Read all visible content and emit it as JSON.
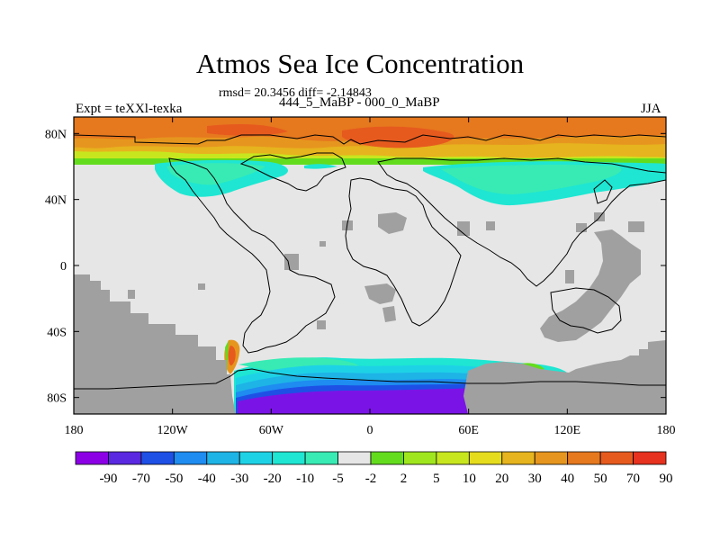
{
  "title": "Atmos Sea Ice Concentration",
  "subtitle_stats": "rmsd= 20.3456 diff= -2.14843",
  "subtitle_compare": "444_5_MaBP - 000_0_MaBP",
  "experiment": "Expt = teXXl-texka",
  "season": "JJA",
  "map": {
    "lon_range": [
      -180,
      180
    ],
    "lat_range": [
      -90,
      90
    ],
    "x_ticks": [
      {
        "lon": -180,
        "label": "180"
      },
      {
        "lon": -120,
        "label": "120W"
      },
      {
        "lon": -60,
        "label": "60W"
      },
      {
        "lon": 0,
        "label": "0"
      },
      {
        "lon": 60,
        "label": "60E"
      },
      {
        "lon": 120,
        "label": "120E"
      },
      {
        "lon": 180,
        "label": "180"
      }
    ],
    "y_ticks": [
      {
        "lat": 80,
        "label": "80N"
      },
      {
        "lat": 40,
        "label": "40N"
      },
      {
        "lat": 0,
        "label": "0"
      },
      {
        "lat": -40,
        "label": "40S"
      },
      {
        "lat": -80,
        "label": "80S"
      }
    ]
  },
  "colorbar": {
    "colors": [
      "#8c00e6",
      "#5a28e0",
      "#1e50e6",
      "#1e8cf0",
      "#1eb4e6",
      "#1ed2e6",
      "#1ee6d2",
      "#38ebb4",
      "#e6e6e6",
      "#64dc1e",
      "#a0e61e",
      "#c8e61e",
      "#e6dc1e",
      "#e6b41e",
      "#e6961e",
      "#e6781e",
      "#e65a1e",
      "#e6321e"
    ],
    "labels": [
      "-90",
      "-70",
      "-50",
      "-40",
      "-30",
      "-20",
      "-10",
      "-5",
      "-2",
      "2",
      "5",
      "10",
      "20",
      "30",
      "40",
      "50",
      "70",
      "90"
    ]
  },
  "map_colors": {
    "land_mask": "#a0a0a0",
    "neutral": "#e6e6e6",
    "arctic_high": "#e6641e",
    "antarctic_low": "#7a14e6"
  }
}
